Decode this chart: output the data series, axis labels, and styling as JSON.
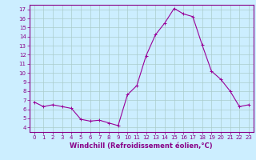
{
  "title": "",
  "xlabel": "Windchill (Refroidissement éolien,°C)",
  "ylabel": "",
  "xlim": [
    -0.5,
    23.5
  ],
  "ylim": [
    3.5,
    17.5
  ],
  "yticks": [
    4,
    5,
    6,
    7,
    8,
    9,
    10,
    11,
    12,
    13,
    14,
    15,
    16,
    17
  ],
  "xticks": [
    0,
    1,
    2,
    3,
    4,
    5,
    6,
    7,
    8,
    9,
    10,
    11,
    12,
    13,
    14,
    15,
    16,
    17,
    18,
    19,
    20,
    21,
    22,
    23
  ],
  "line_color": "#990099",
  "bg_color": "#cceeff",
  "grid_color": "#aacccc",
  "y_values": [
    6.8,
    6.3,
    6.5,
    6.3,
    6.1,
    4.9,
    4.7,
    4.8,
    4.5,
    4.2,
    7.6,
    8.6,
    11.9,
    14.2,
    15.5,
    17.1,
    16.5,
    16.2,
    13.1,
    10.2,
    9.3,
    8.0,
    6.3,
    6.5
  ],
  "marker": "+",
  "markersize": 3,
  "linewidth": 0.8,
  "tick_fontsize": 5,
  "xlabel_fontsize": 6,
  "tick_color": "#880088",
  "spine_color": "#880088"
}
